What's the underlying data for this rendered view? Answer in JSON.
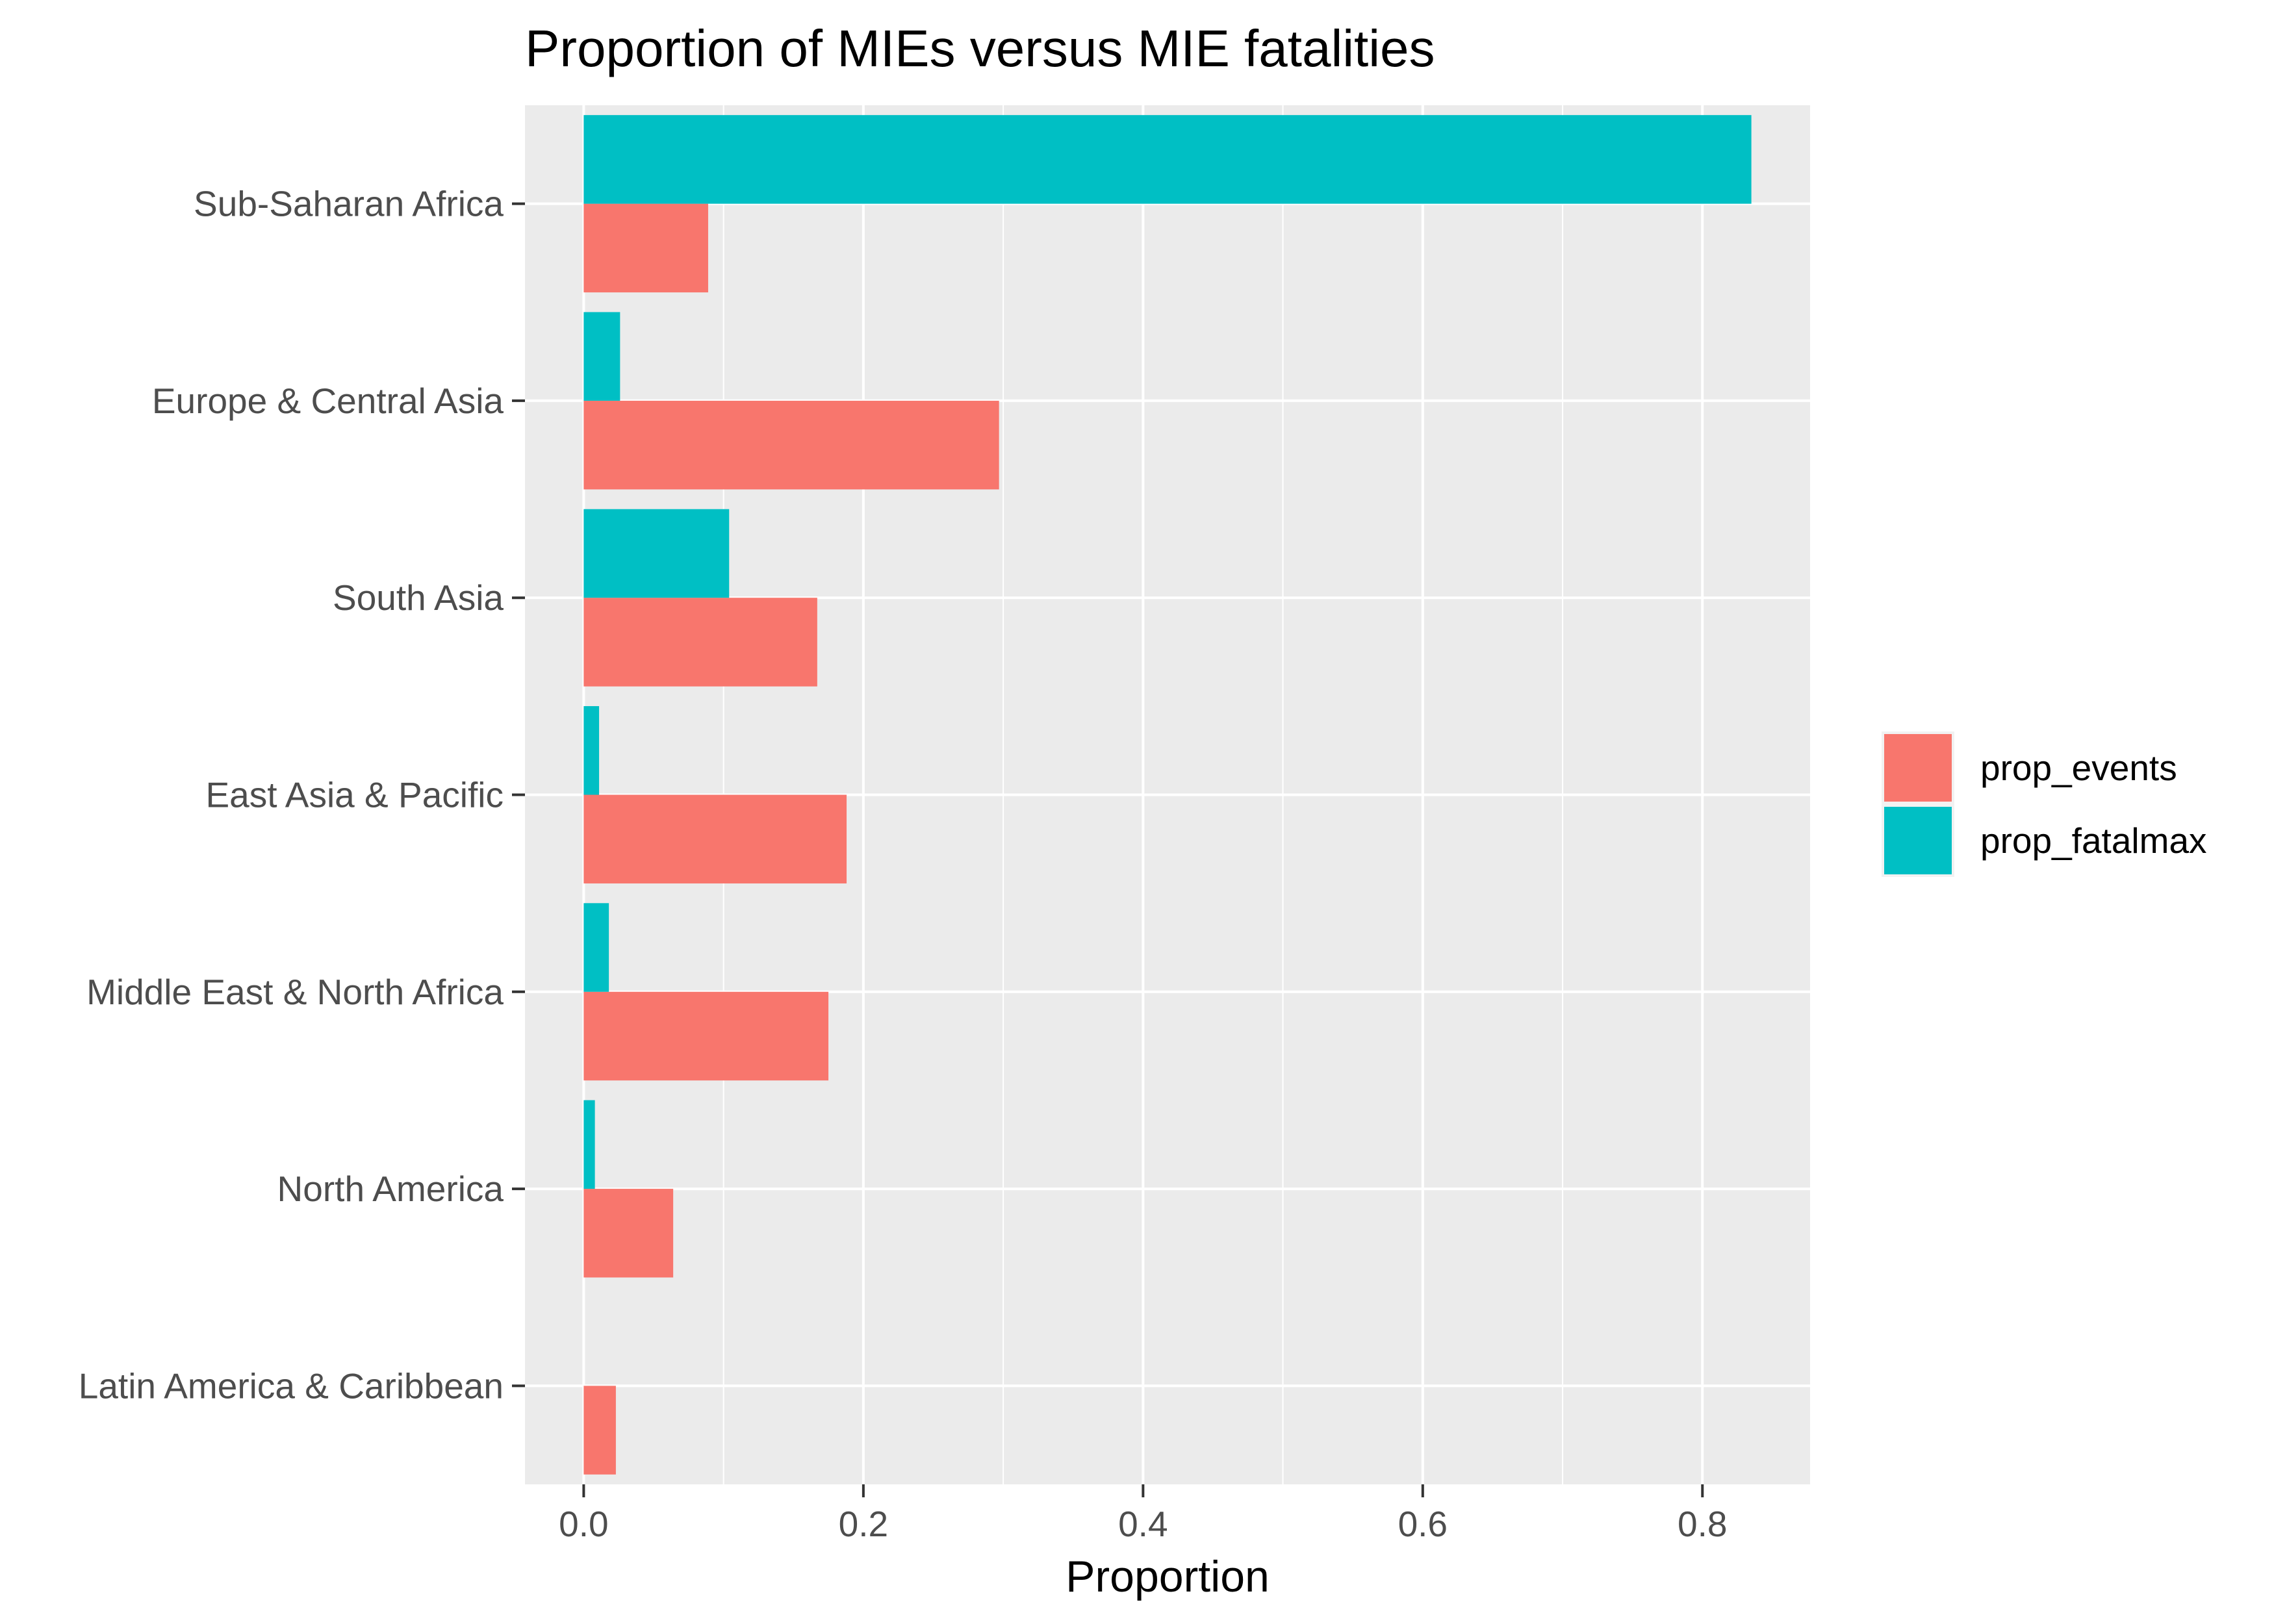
{
  "chart_data": {
    "type": "bar",
    "orientation": "horizontal",
    "title": "Proportion of MIEs versus MIE fatalities",
    "xlabel": "Proportion",
    "ylabel": "",
    "categories": [
      "Sub-Saharan Africa",
      "Europe & Central Asia",
      "South Asia",
      "East Asia & Pacific",
      "Middle East & North Africa",
      "North America",
      "Latin America & Caribbean"
    ],
    "series": [
      {
        "name": "prop_events",
        "color": "#F8766D",
        "values": [
          0.089,
          0.297,
          0.167,
          0.188,
          0.175,
          0.064,
          0.023
        ]
      },
      {
        "name": "prop_fatalmax",
        "color": "#00BFC4",
        "values": [
          0.835,
          0.026,
          0.104,
          0.011,
          0.018,
          0.008,
          0.0
        ]
      }
    ],
    "xlim": [
      -0.042,
      0.877
    ],
    "xticks": [
      0.0,
      0.2,
      0.4,
      0.6,
      0.8
    ],
    "xtick_labels": [
      "0.0",
      "0.2",
      "0.4",
      "0.6",
      "0.8"
    ],
    "grid": true,
    "panel_background": "#EBEBEB",
    "legend_position": "right"
  }
}
